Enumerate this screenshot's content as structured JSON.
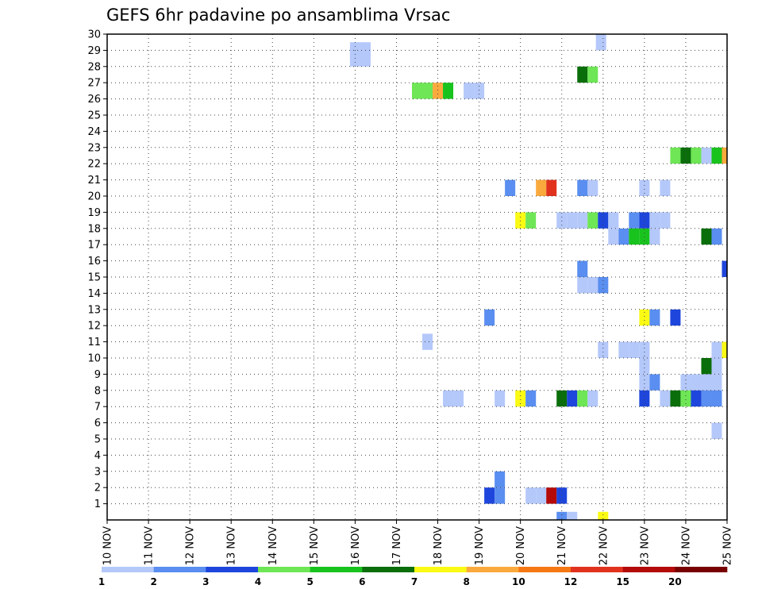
{
  "chart_data": {
    "type": "heatmap",
    "title": "GEFS 6hr padavine po ansamblima Vrsac",
    "x_axis": {
      "unit": "day",
      "range": [
        10,
        25
      ],
      "tick_labels": [
        "10 NOV",
        "11 NOV",
        "12 NOV",
        "13 NOV",
        "14 NOV",
        "15 NOV",
        "16 NOV",
        "17 NOV",
        "18 NOV",
        "19 NOV",
        "20 NOV",
        "21 NOV",
        "22 NOV",
        "23 NOV",
        "24 NOV",
        "25 NOV"
      ]
    },
    "y_axis": {
      "range": [
        0,
        30
      ],
      "tick_labels": [
        "1",
        "2",
        "3",
        "4",
        "5",
        "6",
        "7",
        "8",
        "9",
        "10",
        "11",
        "12",
        "13",
        "14",
        "15",
        "16",
        "17",
        "18",
        "19",
        "20",
        "21",
        "22",
        "23",
        "24",
        "25",
        "26",
        "27",
        "28",
        "29",
        "30"
      ]
    },
    "grid": true,
    "colorbar": {
      "placement": "bottom",
      "labels": [
        "1",
        "2",
        "3",
        "4",
        "5",
        "6",
        "7",
        "8",
        "10",
        "12",
        "15",
        "20"
      ],
      "colors": [
        "#b4c8fa",
        "#5a8ef0",
        "#1e46dc",
        "#6ee655",
        "#19c31e",
        "#0a6e0a",
        "#fafa14",
        "#faaa3c",
        "#f57814",
        "#e1321e",
        "#b40a0a",
        "#780000"
      ]
    },
    "cells": [
      {
        "t": 21.95,
        "m": 29.5,
        "v": 1
      },
      {
        "t": 16.0,
        "m": 28.5,
        "v": 1
      },
      {
        "t": 16.25,
        "m": 28.5,
        "v": 1
      },
      {
        "t": 16.0,
        "m": 29.0,
        "v": 1
      },
      {
        "t": 16.25,
        "m": 29.0,
        "v": 1
      },
      {
        "t": 21.5,
        "m": 27.5,
        "v": 6
      },
      {
        "t": 21.75,
        "m": 27.5,
        "v": 4
      },
      {
        "t": 17.5,
        "m": 26.5,
        "v": 4
      },
      {
        "t": 17.75,
        "m": 26.5,
        "v": 4
      },
      {
        "t": 18.0,
        "m": 26.5,
        "v": 8
      },
      {
        "t": 18.25,
        "m": 26.5,
        "v": 5
      },
      {
        "t": 18.75,
        "m": 26.5,
        "v": 1
      },
      {
        "t": 19.0,
        "m": 26.5,
        "v": 1
      },
      {
        "t": 23.75,
        "m": 22.5,
        "v": 4
      },
      {
        "t": 24.0,
        "m": 22.5,
        "v": 6
      },
      {
        "t": 24.25,
        "m": 22.5,
        "v": 4
      },
      {
        "t": 24.5,
        "m": 22.5,
        "v": 1
      },
      {
        "t": 24.75,
        "m": 22.5,
        "v": 5
      },
      {
        "t": 25.0,
        "m": 22.5,
        "v": 8
      },
      {
        "t": 19.75,
        "m": 20.5,
        "v": 2
      },
      {
        "t": 20.5,
        "m": 20.5,
        "v": 8
      },
      {
        "t": 20.75,
        "m": 20.5,
        "v": 12
      },
      {
        "t": 21.5,
        "m": 20.5,
        "v": 2
      },
      {
        "t": 21.75,
        "m": 20.5,
        "v": 1
      },
      {
        "t": 23.0,
        "m": 20.5,
        "v": 1
      },
      {
        "t": 23.5,
        "m": 20.5,
        "v": 1
      },
      {
        "t": 20.0,
        "m": 18.5,
        "v": 7
      },
      {
        "t": 20.25,
        "m": 18.5,
        "v": 4
      },
      {
        "t": 21.0,
        "m": 18.5,
        "v": 1
      },
      {
        "t": 21.25,
        "m": 18.5,
        "v": 1
      },
      {
        "t": 21.5,
        "m": 18.5,
        "v": 1
      },
      {
        "t": 21.75,
        "m": 18.5,
        "v": 4
      },
      {
        "t": 22.0,
        "m": 18.5,
        "v": 3
      },
      {
        "t": 22.25,
        "m": 18.5,
        "v": 1
      },
      {
        "t": 22.75,
        "m": 18.5,
        "v": 2
      },
      {
        "t": 23.0,
        "m": 18.5,
        "v": 3
      },
      {
        "t": 23.25,
        "m": 18.5,
        "v": 1
      },
      {
        "t": 23.5,
        "m": 18.5,
        "v": 1
      },
      {
        "t": 22.25,
        "m": 17.5,
        "v": 1
      },
      {
        "t": 22.5,
        "m": 17.5,
        "v": 2
      },
      {
        "t": 22.75,
        "m": 17.5,
        "v": 5
      },
      {
        "t": 23.0,
        "m": 17.5,
        "v": 5
      },
      {
        "t": 23.25,
        "m": 17.5,
        "v": 1
      },
      {
        "t": 24.5,
        "m": 17.5,
        "v": 6
      },
      {
        "t": 24.75,
        "m": 17.5,
        "v": 2
      },
      {
        "t": 21.5,
        "m": 15.5,
        "v": 2
      },
      {
        "t": 25.0,
        "m": 15.5,
        "v": 3
      },
      {
        "t": 21.5,
        "m": 14.5,
        "v": 1
      },
      {
        "t": 21.75,
        "m": 14.5,
        "v": 1
      },
      {
        "t": 22.0,
        "m": 14.5,
        "v": 2
      },
      {
        "t": 19.25,
        "m": 12.5,
        "v": 2
      },
      {
        "t": 23.0,
        "m": 12.5,
        "v": 7
      },
      {
        "t": 23.25,
        "m": 12.5,
        "v": 2
      },
      {
        "t": 23.75,
        "m": 12.5,
        "v": 3
      },
      {
        "t": 17.75,
        "m": 11.0,
        "v": 1
      },
      {
        "t": 22.0,
        "m": 10.5,
        "v": 1
      },
      {
        "t": 22.5,
        "m": 10.5,
        "v": 1
      },
      {
        "t": 22.75,
        "m": 10.5,
        "v": 1
      },
      {
        "t": 23.0,
        "m": 10.5,
        "v": 1
      },
      {
        "t": 24.75,
        "m": 10.5,
        "v": 1
      },
      {
        "t": 25.0,
        "m": 10.5,
        "v": 7
      },
      {
        "t": 23.0,
        "m": 9.5,
        "v": 1
      },
      {
        "t": 24.5,
        "m": 9.5,
        "v": 6
      },
      {
        "t": 24.75,
        "m": 9.5,
        "v": 1
      },
      {
        "t": 23.0,
        "m": 8.5,
        "v": 1
      },
      {
        "t": 23.25,
        "m": 8.5,
        "v": 2
      },
      {
        "t": 24.0,
        "m": 8.5,
        "v": 1
      },
      {
        "t": 24.25,
        "m": 8.5,
        "v": 1
      },
      {
        "t": 24.5,
        "m": 8.5,
        "v": 1
      },
      {
        "t": 24.75,
        "m": 8.5,
        "v": 1
      },
      {
        "t": 18.25,
        "m": 7.5,
        "v": 1
      },
      {
        "t": 18.5,
        "m": 7.5,
        "v": 1
      },
      {
        "t": 19.5,
        "m": 7.5,
        "v": 1
      },
      {
        "t": 20.0,
        "m": 7.5,
        "v": 7
      },
      {
        "t": 20.25,
        "m": 7.5,
        "v": 2
      },
      {
        "t": 21.0,
        "m": 7.5,
        "v": 6
      },
      {
        "t": 21.25,
        "m": 7.5,
        "v": 3
      },
      {
        "t": 21.5,
        "m": 7.5,
        "v": 4
      },
      {
        "t": 21.75,
        "m": 7.5,
        "v": 1
      },
      {
        "t": 23.0,
        "m": 7.5,
        "v": 3
      },
      {
        "t": 23.5,
        "m": 7.5,
        "v": 1
      },
      {
        "t": 23.75,
        "m": 7.5,
        "v": 6
      },
      {
        "t": 24.0,
        "m": 7.5,
        "v": 4
      },
      {
        "t": 24.25,
        "m": 7.5,
        "v": 3
      },
      {
        "t": 24.5,
        "m": 7.5,
        "v": 2
      },
      {
        "t": 24.75,
        "m": 7.5,
        "v": 2
      },
      {
        "t": 24.75,
        "m": 5.5,
        "v": 1
      },
      {
        "t": 19.5,
        "m": 2.5,
        "v": 2
      },
      {
        "t": 19.25,
        "m": 1.5,
        "v": 3
      },
      {
        "t": 19.5,
        "m": 1.5,
        "v": 2
      },
      {
        "t": 20.25,
        "m": 1.5,
        "v": 1
      },
      {
        "t": 20.5,
        "m": 1.5,
        "v": 1
      },
      {
        "t": 20.75,
        "m": 1.5,
        "v": 15
      },
      {
        "t": 21.0,
        "m": 1.5,
        "v": 3
      },
      {
        "t": 21.0,
        "m": 0.0,
        "v": 2
      },
      {
        "t": 21.25,
        "m": 0.0,
        "v": 1
      },
      {
        "t": 22.0,
        "m": 0.0,
        "v": 7
      }
    ]
  }
}
